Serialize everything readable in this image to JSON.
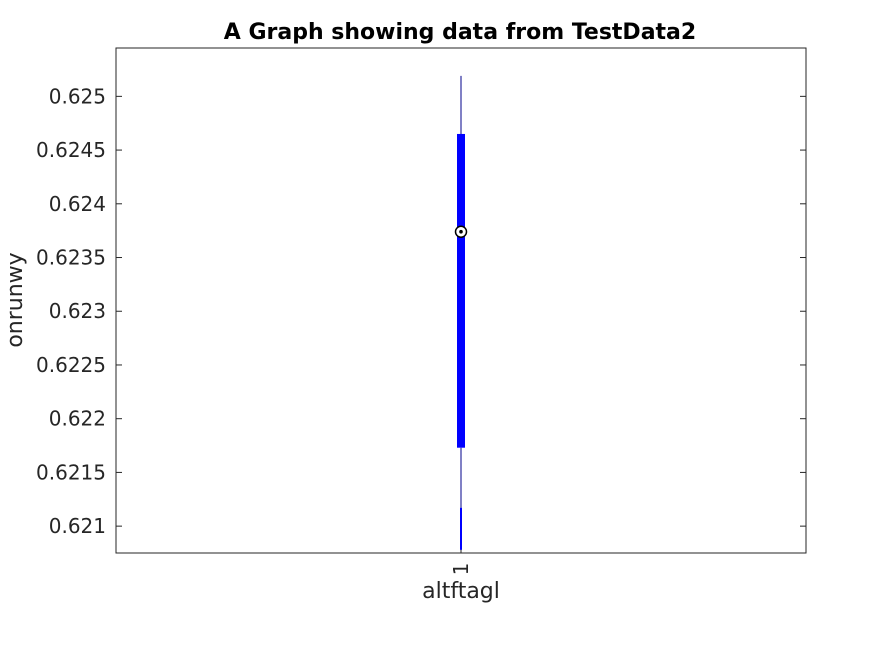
{
  "chart_data": {
    "type": "box",
    "title": "A Graph showing data from TestData2",
    "xlabel": "altftagl",
    "ylabel": "onrunwy",
    "categories": [
      "1"
    ],
    "ylim": [
      0.62075,
      0.62545
    ],
    "yticks": [
      "0.621",
      "0.6215",
      "0.622",
      "0.6225",
      "0.623",
      "0.6235",
      "0.624",
      "0.6245",
      "0.625"
    ],
    "boxes": [
      {
        "category": "1",
        "whisker_low": 0.62078,
        "q1": 0.62173,
        "median": 0.62374,
        "q3": 0.62465,
        "whisker_high": 0.62519,
        "outlier_segment": [
          0.62078,
          0.62117
        ]
      }
    ],
    "colors": {
      "box": "#0000ff",
      "whisker": "#00008b",
      "median_marker": "#000000"
    },
    "grid": false
  }
}
